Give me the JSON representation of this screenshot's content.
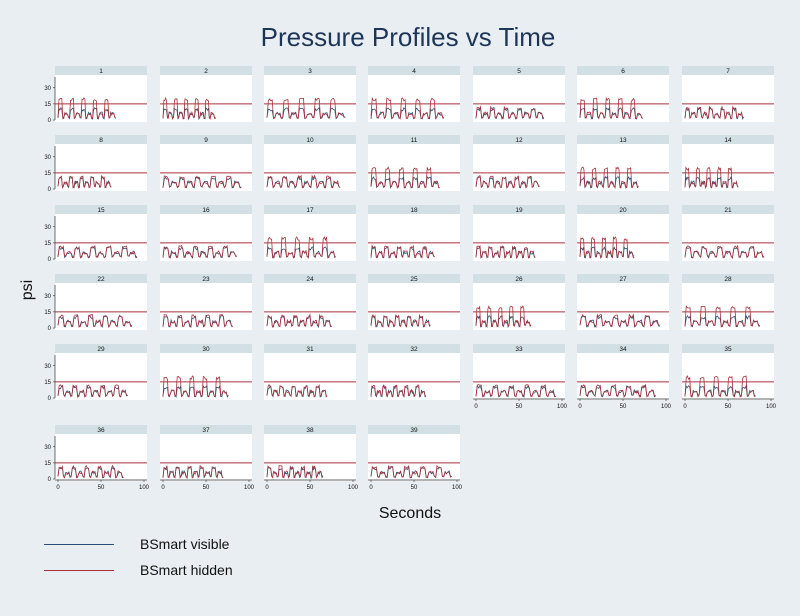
{
  "chart_data": {
    "type": "line",
    "title": "Pressure Profiles vs Time",
    "xlabel": "Seconds",
    "ylabel": "psi",
    "xlim": [
      0,
      100
    ],
    "xticks": [
      0,
      50,
      100
    ],
    "ylim": [
      0,
      40
    ],
    "yticks": [
      0,
      15,
      30
    ],
    "reference_line": 15,
    "legend": [
      {
        "name": "BSmart visible",
        "color": "#2b4e74"
      },
      {
        "name": "BSmart hidden",
        "color": "#a8323c"
      }
    ],
    "x_axis_shown_on_panels": [
      "33",
      "34",
      "35",
      "36",
      "37",
      "38",
      "39"
    ],
    "panels": [
      "1",
      "2",
      "3",
      "4",
      "5",
      "6",
      "7",
      "8",
      "9",
      "10",
      "11",
      "12",
      "13",
      "14",
      "15",
      "16",
      "17",
      "18",
      "19",
      "20",
      "21",
      "22",
      "23",
      "24",
      "25",
      "26",
      "27",
      "28",
      "29",
      "30",
      "31",
      "32",
      "33",
      "34",
      "35",
      "36",
      "37",
      "38",
      "39"
    ]
  },
  "colors": {
    "background": "#e9eef2",
    "panel_bg": "#ffffff",
    "header_bg": "#d2e0e6",
    "visible": "#2b4e74",
    "hidden": "#a8323c"
  }
}
